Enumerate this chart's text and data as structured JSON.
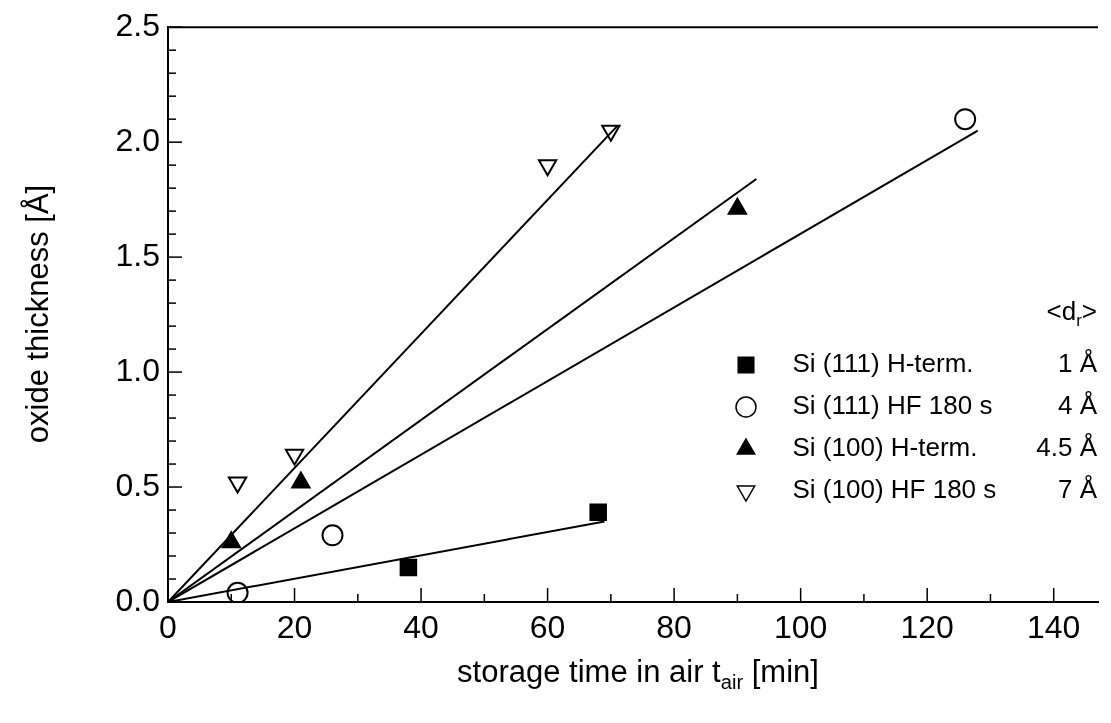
{
  "chart_data": {
    "type": "scatter",
    "xlabel": "storage time in air t$_{air}$ [min]",
    "ylabel": "oxide thickness [Å]",
    "legend_title": "<d$_{r}$>",
    "legend": "right",
    "annotations": [
      "1 Å",
      "4 Å",
      "4.5 Å",
      "7 Å"
    ],
    "xlim": [
      0,
      147
    ],
    "ylim": [
      0,
      2.5
    ],
    "xticks": [
      0,
      {
        "value": 10,
        "label": null
      },
      20,
      {
        "value": 30,
        "label": null
      },
      40,
      {
        "value": 50,
        "label": null
      },
      60,
      {
        "value": 70,
        "label": null
      },
      80,
      {
        "value": 90,
        "label": null
      },
      100,
      {
        "value": 110,
        "label": null
      },
      120,
      {
        "value": 130,
        "label": null
      },
      140
    ],
    "yticks": [
      {
        "value": 0,
        "label": "0.0"
      },
      {
        "value": 0.1,
        "label": null
      },
      {
        "value": 0.2,
        "label": null
      },
      {
        "value": 0.3,
        "label": null
      },
      {
        "value": 0.4,
        "label": null
      },
      0.5,
      {
        "value": 0.6,
        "label": null
      },
      {
        "value": 0.7,
        "label": null
      },
      {
        "value": 0.8,
        "label": null
      },
      {
        "value": 0.9,
        "label": null
      },
      {
        "value": 1,
        "label": "1.0"
      },
      {
        "value": 1.1,
        "label": null
      },
      {
        "value": 1.2,
        "label": null
      },
      {
        "value": 1.3,
        "label": null
      },
      {
        "value": 1.4,
        "label": null
      },
      1.5,
      {
        "value": 1.6,
        "label": null
      },
      {
        "value": 1.7,
        "label": null
      },
      {
        "value": 1.8,
        "label": null
      },
      {
        "value": 1.9,
        "label": null
      },
      {
        "value": 2,
        "label": "2.0"
      },
      {
        "value": 2.1,
        "label": null
      },
      {
        "value": 2.2,
        "label": null
      },
      {
        "value": 2.3,
        "label": null
      },
      {
        "value": 2.4,
        "label": null
      },
      2.5
    ],
    "grid": false,
    "series": [
      {
        "name": "Si (111) H-term.",
        "marker": "square",
        "color": "#000000",
        "x": [
          38,
          68
        ],
        "values": [
          0.15,
          0.39
        ]
      },
      {
        "name": "Si (111) HF 180 s",
        "marker": "circle-open",
        "color": "#000000",
        "x": [
          11,
          26,
          126
        ],
        "values": [
          0.04,
          0.29,
          2.1
        ]
      },
      {
        "name": "Si (100) H-term.",
        "marker": "triangle",
        "color": "#000000",
        "x": [
          10,
          21,
          90
        ],
        "values": [
          0.26,
          0.52,
          1.71
        ]
      },
      {
        "name": "Si (100) HF 180 s",
        "marker": "triangle-down-open",
        "color": "#000000",
        "x": [
          11,
          20,
          60,
          70
        ],
        "values": [
          0.52,
          0.64,
          1.9,
          2.05
        ]
      },
      {
        "type": "line",
        "marker": "none",
        "color": "#000000",
        "x": [
          0,
          69
        ],
        "values": [
          0,
          0.35
        ]
      },
      {
        "type": "line",
        "marker": "none",
        "color": "#000000",
        "x": [
          0,
          128
        ],
        "values": [
          0,
          2.05
        ]
      },
      {
        "type": "line",
        "marker": "none",
        "color": "#000000",
        "x": [
          0,
          93
        ],
        "values": [
          0,
          1.84
        ]
      },
      {
        "type": "line",
        "marker": "none",
        "color": "#000000",
        "x": [
          0,
          71
        ],
        "values": [
          0,
          2.07
        ]
      }
    ]
  }
}
